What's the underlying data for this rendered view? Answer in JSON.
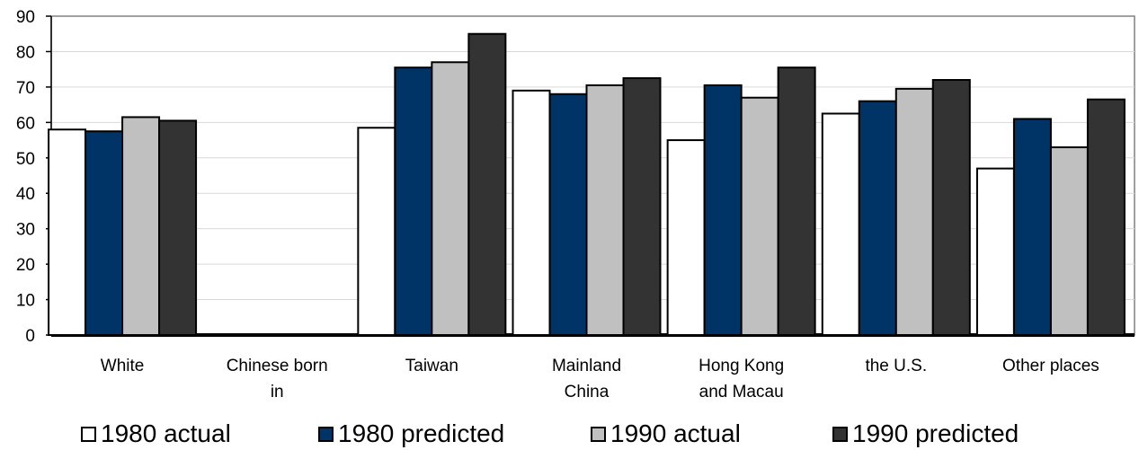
{
  "chart_data": {
    "type": "bar",
    "categories": [
      [
        "White"
      ],
      [
        "Chinese born",
        "in"
      ],
      [
        "Taiwan"
      ],
      [
        "Mainland",
        "China"
      ],
      [
        "Hong Kong",
        "and Macau"
      ],
      [
        "the U.S."
      ],
      [
        "Other places"
      ]
    ],
    "series": [
      {
        "name": "1980 actual",
        "color": "#ffffff",
        "values": [
          58,
          null,
          58.5,
          69,
          55,
          62.5,
          47
        ]
      },
      {
        "name": "1980 predicted",
        "color": "#003366",
        "values": [
          57.5,
          null,
          75.5,
          68,
          70.5,
          66,
          61
        ]
      },
      {
        "name": "1990 actual",
        "color": "#c0c0c0",
        "values": [
          61.5,
          null,
          77,
          70.5,
          67,
          69.5,
          53
        ]
      },
      {
        "name": "1990 predicted",
        "color": "#333333",
        "values": [
          60.5,
          null,
          85,
          72.5,
          75.5,
          72,
          66.5
        ]
      }
    ],
    "yticks": [
      0,
      10,
      20,
      30,
      40,
      50,
      60,
      70,
      80,
      90
    ],
    "ylim": [
      0,
      90
    ],
    "grid": true,
    "legend_position": "bottom"
  },
  "legend": {
    "items": [
      {
        "label": "1980 actual",
        "color": "#ffffff"
      },
      {
        "label": "1980 predicted",
        "color": "#003366"
      },
      {
        "label": "1990 actual",
        "color": "#c0c0c0"
      },
      {
        "label": "1990 predicted",
        "color": "#333333"
      }
    ]
  }
}
